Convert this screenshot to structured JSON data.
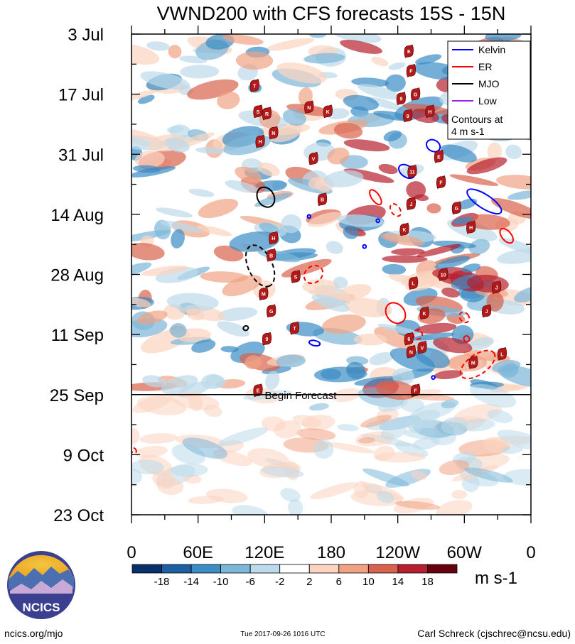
{
  "chart_data": {
    "type": "heatmap",
    "title": "VWND200 with CFS forecasts  15S - 15N",
    "units": "m s-1",
    "x_axis": {
      "labels": [
        "0",
        "60E",
        "120E",
        "180",
        "120W",
        "60W",
        "0"
      ],
      "lon_deg": [
        0,
        60,
        120,
        180,
        240,
        300,
        360
      ],
      "range": [
        0,
        360
      ]
    },
    "y_axis": {
      "labels": [
        "3 Jul",
        "17 Jul",
        "31 Jul",
        "14 Aug",
        "28 Aug",
        "11 Sep",
        "25 Sep",
        "9 Oct",
        "23 Oct"
      ],
      "day_index": [
        0,
        14,
        28,
        42,
        56,
        70,
        84,
        98,
        112
      ],
      "range": [
        0,
        112
      ]
    },
    "colorbar": {
      "tick_labels": [
        "-18",
        "-14",
        "-10",
        "-6",
        "-2",
        "2",
        "6",
        "10",
        "14",
        "18"
      ],
      "colors": [
        "#08306b",
        "#1d5fa3",
        "#3a8cc4",
        "#7cb6d9",
        "#bcdaea",
        "#ffffff",
        "#fbd4c0",
        "#f0a283",
        "#d9624c",
        "#b51f2e",
        "#67000d"
      ]
    },
    "legend": {
      "placement": "top-right",
      "entries": [
        {
          "label": "Kelvin",
          "color": "#0000ff"
        },
        {
          "label": "ER",
          "color": "#ff0000"
        },
        {
          "label": "MJO",
          "color": "#000000"
        },
        {
          "label": "Low",
          "color": "#a020f0"
        }
      ],
      "note_line1": "Contours at",
      "note_line2": "4 m s-1"
    },
    "forecast_start": {
      "label": "Begin Forecast",
      "day": 84
    },
    "contours": [
      {
        "wave": "Kelvin",
        "lon": 248,
        "day": 32,
        "rx": 8,
        "ry": 1.3,
        "rot": 35,
        "dashed": false
      },
      {
        "wave": "Kelvin",
        "lon": 272,
        "day": 26,
        "rx": 6.5,
        "ry": 1.3,
        "rot": 30,
        "dashed": false
      },
      {
        "wave": "Kelvin",
        "lon": 318,
        "day": 39,
        "rx": 18,
        "ry": 1.6,
        "rot": 33,
        "dashed": false
      },
      {
        "wave": "Kelvin",
        "lon": 165,
        "day": 72,
        "rx": 5,
        "ry": 0.6,
        "rot": 12,
        "dashed": false
      },
      {
        "wave": "Kelvin",
        "lon": 160,
        "day": 42.5,
        "rx": 1.5,
        "ry": 0.4,
        "rot": 0,
        "dashed": false
      },
      {
        "wave": "Kelvin",
        "lon": 210,
        "day": 49.5,
        "rx": 1.5,
        "ry": 0.4,
        "rot": 0,
        "dashed": false
      },
      {
        "wave": "Kelvin",
        "lon": 222,
        "day": 43.5,
        "rx": 1.5,
        "ry": 0.4,
        "rot": 0,
        "dashed": false
      },
      {
        "wave": "Kelvin",
        "lon": 272,
        "day": 80,
        "rx": 1.5,
        "ry": 0.4,
        "rot": 0,
        "dashed": false
      },
      {
        "wave": "ER",
        "lon": 220,
        "day": 38,
        "rx": 3.5,
        "ry": 2,
        "rot": -35,
        "dashed": false
      },
      {
        "wave": "ER",
        "lon": 238,
        "day": 65,
        "rx": 8,
        "ry": 2.6,
        "rot": -40,
        "dashed": false
      },
      {
        "wave": "ER",
        "lon": 338,
        "day": 47,
        "rx": 4.2,
        "ry": 2,
        "rot": -40,
        "dashed": false
      },
      {
        "wave": "ER",
        "lon": 302,
        "day": 71,
        "rx": 2.5,
        "ry": 0.7,
        "rot": -45,
        "dashed": false
      },
      {
        "wave": "ER",
        "lon": 238,
        "day": 41,
        "rx": 4,
        "ry": 1.6,
        "rot": -35,
        "dashed": true
      },
      {
        "wave": "ER",
        "lon": 164,
        "day": 56,
        "rx": 9,
        "ry": 1.9,
        "rot": -38,
        "dashed": true
      },
      {
        "wave": "ER",
        "lon": 300,
        "day": 66,
        "rx": 4,
        "ry": 1.3,
        "rot": -40,
        "dashed": true
      },
      {
        "wave": "ER",
        "lon": 258,
        "day": 70,
        "rx": 4,
        "ry": 1.1,
        "rot": -40,
        "dashed": true
      },
      {
        "wave": "ER",
        "lon": 312,
        "day": 77,
        "rx": 18,
        "ry": 2.3,
        "rot": -35,
        "dashed": true
      },
      {
        "wave": "ER",
        "lon": 2,
        "day": 97,
        "rx": 2,
        "ry": 0.7,
        "rot": -45,
        "dashed": true
      },
      {
        "wave": "MJO",
        "lon": 121,
        "day": 38,
        "rx": 9.5,
        "ry": 1.9,
        "rot": 60,
        "dashed": false
      },
      {
        "wave": "MJO",
        "lon": 116,
        "day": 54,
        "rx": 20,
        "ry": 2.8,
        "rot": 65,
        "dashed": true
      },
      {
        "wave": "MJO",
        "lon": 103,
        "day": 68.5,
        "rx": 2,
        "ry": 0.6,
        "rot": 65,
        "dashed": false
      }
    ],
    "cyclones": [
      {
        "name": "E",
        "lon": 250,
        "day": 4
      },
      {
        "name": "F",
        "lon": 252,
        "day": 8.5
      },
      {
        "name": "T",
        "lon": 111,
        "day": 12
      },
      {
        "name": "G",
        "lon": 256,
        "day": 14
      },
      {
        "name": "9",
        "lon": 243,
        "day": 15
      },
      {
        "name": "N",
        "lon": 160,
        "day": 17
      },
      {
        "name": "K",
        "lon": 177,
        "day": 18
      },
      {
        "name": "S",
        "lon": 114,
        "day": 18
      },
      {
        "name": "R",
        "lon": 122,
        "day": 18.5
      },
      {
        "name": "H",
        "lon": 269,
        "day": 18
      },
      {
        "name": "9",
        "lon": 249,
        "day": 19
      },
      {
        "name": "N",
        "lon": 128,
        "day": 23
      },
      {
        "name": "H",
        "lon": 116,
        "day": 25
      },
      {
        "name": "E",
        "lon": 277,
        "day": 28.5
      },
      {
        "name": "V",
        "lon": 164,
        "day": 29
      },
      {
        "name": "11",
        "lon": 253,
        "day": 32
      },
      {
        "name": "F",
        "lon": 279,
        "day": 34.5
      },
      {
        "name": "B",
        "lon": 172,
        "day": 38.5
      },
      {
        "name": "J",
        "lon": 252,
        "day": 39.5
      },
      {
        "name": "G",
        "lon": 293,
        "day": 40.5
      },
      {
        "name": "H",
        "lon": 128,
        "day": 47.5
      },
      {
        "name": "K",
        "lon": 246,
        "day": 45.5
      },
      {
        "name": "H",
        "lon": 306,
        "day": 45
      },
      {
        "name": "B",
        "lon": 126,
        "day": 51.5
      },
      {
        "name": "S",
        "lon": 148,
        "day": 56.5
      },
      {
        "name": "10",
        "lon": 281,
        "day": 56
      },
      {
        "name": "L",
        "lon": 254,
        "day": 58
      },
      {
        "name": "J",
        "lon": 329,
        "day": 59
      },
      {
        "name": "M",
        "lon": 119,
        "day": 60.5
      },
      {
        "name": "G",
        "lon": 126,
        "day": 64.5
      },
      {
        "name": "K",
        "lon": 264,
        "day": 65
      },
      {
        "name": "J",
        "lon": 320,
        "day": 64.5
      },
      {
        "name": "T",
        "lon": 147,
        "day": 68.5
      },
      {
        "name": "9",
        "lon": 122,
        "day": 71
      },
      {
        "name": "6",
        "lon": 250,
        "day": 71
      },
      {
        "name": "V",
        "lon": 262,
        "day": 73
      },
      {
        "name": "N",
        "lon": 252,
        "day": 74
      },
      {
        "name": "M",
        "lon": 308,
        "day": 76.5
      },
      {
        "name": "L",
        "lon": 334,
        "day": 74.5
      },
      {
        "name": "F",
        "lon": 256,
        "day": 83
      },
      {
        "name": "E",
        "lon": 114,
        "day": 83
      }
    ]
  },
  "footer": {
    "logo_text": "NCICS",
    "url": "ncics.org/mjo",
    "timestamp": "Tue 2017-09-26 1016 UTC",
    "author": "Carl Schreck (cjschrec@ncsu.edu)"
  }
}
